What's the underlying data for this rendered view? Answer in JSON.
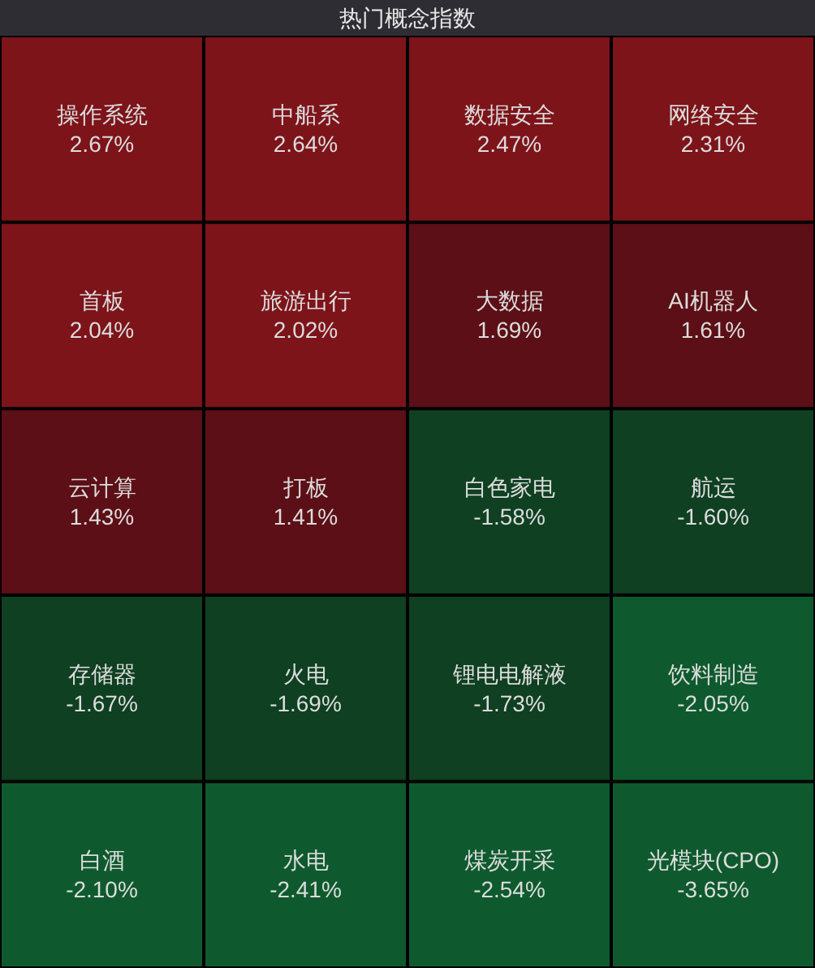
{
  "chart_data": {
    "type": "other",
    "title": "热门概念指数",
    "categories": [
      "操作系统",
      "中船系",
      "数据安全",
      "网络安全",
      "首板",
      "旅游出行",
      "大数据",
      "AI机器人",
      "云计算",
      "打板",
      "白色家电",
      "航运",
      "存储器",
      "火电",
      "锂电电解液",
      "饮料制造",
      "白酒",
      "水电",
      "煤炭开采",
      "光模块(CPO)"
    ],
    "values": [
      2.67,
      2.64,
      2.47,
      2.31,
      2.04,
      2.02,
      1.69,
      1.61,
      1.43,
      1.41,
      -1.58,
      -1.6,
      -1.67,
      -1.69,
      -1.73,
      -2.05,
      -2.1,
      -2.41,
      -2.54,
      -3.65
    ],
    "value_labels": [
      "2.67%",
      "2.64%",
      "2.47%",
      "2.31%",
      "2.04%",
      "2.02%",
      "1.69%",
      "1.61%",
      "1.43%",
      "1.41%",
      "-1.58%",
      "-1.60%",
      "-1.67%",
      "-1.69%",
      "-1.73%",
      "-2.05%",
      "-2.10%",
      "-2.41%",
      "-2.54%",
      "-3.65%"
    ],
    "colors": [
      "#7d141a",
      "#7d141a",
      "#7d141a",
      "#7d141a",
      "#7d141a",
      "#7d141a",
      "#5c0f16",
      "#5c0f16",
      "#5c0f16",
      "#5c0f16",
      "#0f4022",
      "#0f4022",
      "#0f4022",
      "#0f4022",
      "#0f4022",
      "#0e5a2e",
      "#0e5a2e",
      "#0e5a2e",
      "#0e5a2e",
      "#0e5a2e"
    ]
  }
}
